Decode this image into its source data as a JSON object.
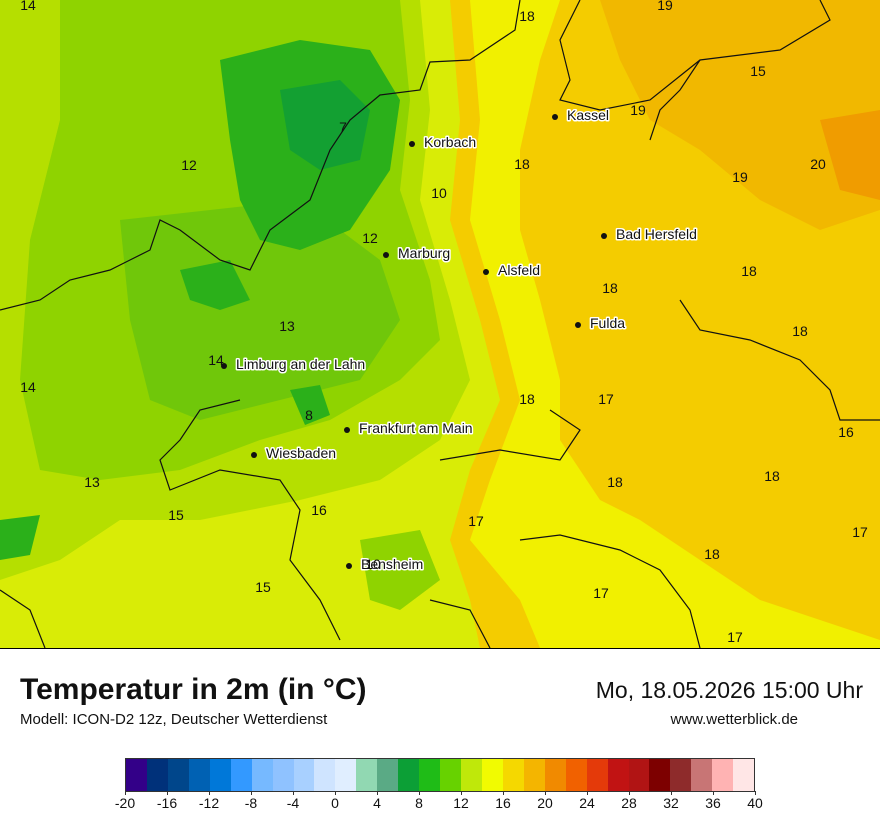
{
  "title": "Temperatur in 2m (in °C)",
  "model": "Modell: ICON-D2 12z, Deutscher Wetterdienst",
  "datetime": "Mo, 18.05.2026 15:00 Uhr",
  "website": "www.wetterblick.de",
  "cities": [
    {
      "name": "Kassel"
    },
    {
      "name": "Korbach"
    },
    {
      "name": "Bad Hersfeld"
    },
    {
      "name": "Marburg"
    },
    {
      "name": "Alsfeld"
    },
    {
      "name": "Fulda"
    },
    {
      "name": "Limburg an der Lahn"
    },
    {
      "name": "Frankfurt am Main"
    },
    {
      "name": "Wiesbaden"
    },
    {
      "name": "Bensheim"
    }
  ],
  "values": [
    "14",
    "18",
    "19",
    "15",
    "19",
    "18",
    "20",
    "12",
    "7",
    "10",
    "19",
    "12",
    "18",
    "18",
    "13",
    "18",
    "14",
    "14",
    "17",
    "18",
    "8",
    "16",
    "18",
    "13",
    "18",
    "15",
    "16",
    "17",
    "17",
    "18",
    "10",
    "17",
    "15",
    "17",
    "14"
  ],
  "legend": {
    "colors": [
      "#330088",
      "#00317a",
      "#00468b",
      "#0061b3",
      "#0078d9",
      "#3399ff",
      "#76b9ff",
      "#8fc2ff",
      "#a8d0ff",
      "#cfe4ff",
      "#e0eeff",
      "#91d8b2",
      "#5aaa85",
      "#0c9f36",
      "#1fbc17",
      "#67d200",
      "#bfe80a",
      "#f1fb01",
      "#f5d800",
      "#f4b500",
      "#f18a00",
      "#f16100",
      "#e43a0a",
      "#c11313",
      "#b11414",
      "#7d0000",
      "#8e2b2b",
      "#c87575",
      "#ffb3b3",
      "#ffe6e6"
    ],
    "ticks": [
      "-20",
      "-16",
      "-12",
      "-8",
      "-4",
      "0",
      "4",
      "8",
      "12",
      "16",
      "20",
      "24",
      "28",
      "32",
      "36",
      "40"
    ]
  }
}
